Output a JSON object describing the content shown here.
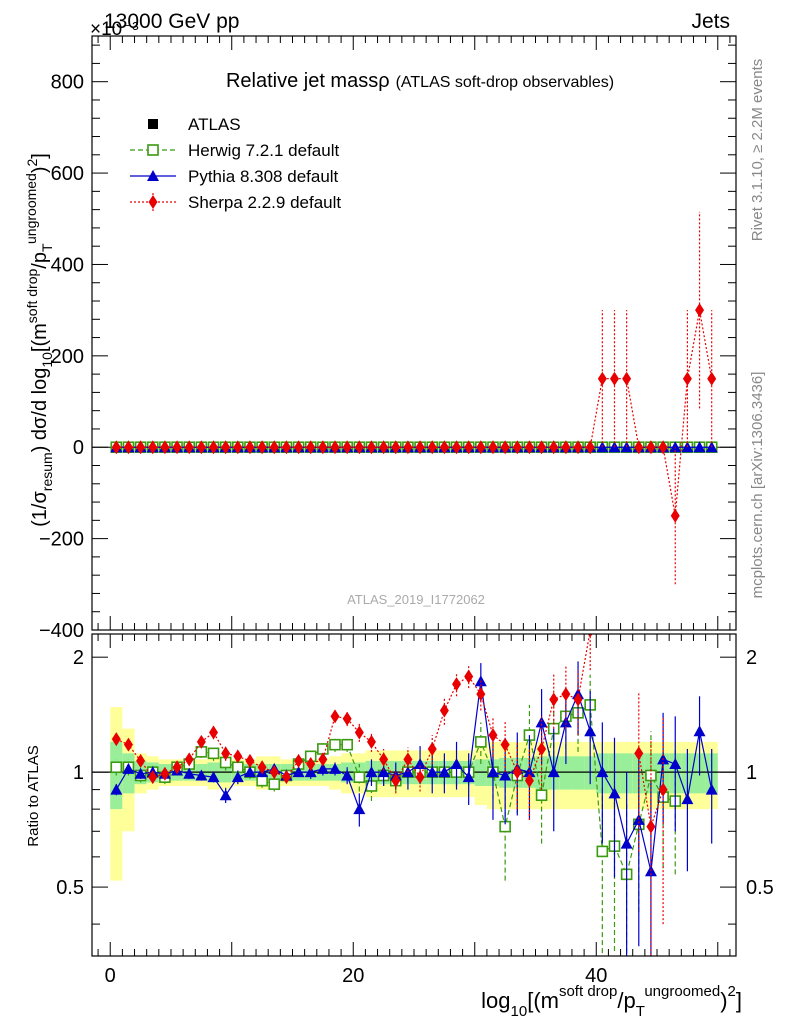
{
  "header": {
    "left": "13000 GeV pp",
    "right": "Jets",
    "exponent": "×10⁻³"
  },
  "side_labels": {
    "rivet": "Rivet 3.1.10, ≥ 2.2M events",
    "mcplots": "mcplots.cern.ch [arXiv:1306.3436]"
  },
  "watermark": "ATLAS_2019_I1772062",
  "chart_data": {
    "type": "line",
    "title": "Relative jet massρ",
    "subtitle": "(ATLAS soft-drop observables)",
    "xlabel": "log10[(m^{soft drop}/p_T^{ungroomed})^2]",
    "ylabel": "(1/σ_resum) dσ/d log10[(m^{soft drop}/p_T^{ungroomed})^2]",
    "ratio_ylabel": "Ratio to ATLAS",
    "xlim": [
      -1.5,
      51.5
    ],
    "ylim": [
      -400,
      900
    ],
    "ratio_ylim": [
      0.33,
      2.3
    ],
    "x_ticks": [
      0,
      20,
      40
    ],
    "y_ticks": [
      -400,
      -200,
      0,
      200,
      400,
      600,
      800
    ],
    "ratio_ticks": [
      0.5,
      1,
      2
    ],
    "x": [
      0.5,
      1.5,
      2.5,
      3.5,
      4.5,
      5.5,
      6.5,
      7.5,
      8.5,
      9.5,
      10.5,
      11.5,
      12.5,
      13.5,
      14.5,
      15.5,
      16.5,
      17.5,
      18.5,
      19.5,
      20.5,
      21.5,
      22.5,
      23.5,
      24.5,
      25.5,
      26.5,
      27.5,
      28.5,
      29.5,
      30.5,
      31.5,
      32.5,
      33.5,
      34.5,
      35.5,
      36.5,
      37.5,
      38.5,
      39.5,
      40.5,
      41.5,
      42.5,
      43.5,
      44.5,
      45.5,
      46.5,
      47.5,
      48.5,
      49.5
    ],
    "band_inner": [
      0.2,
      0.12,
      0.07,
      0.06,
      0.05,
      0.05,
      0.05,
      0.05,
      0.06,
      0.06,
      0.05,
      0.05,
      0.05,
      0.05,
      0.05,
      0.05,
      0.05,
      0.05,
      0.05,
      0.06,
      0.06,
      0.07,
      0.07,
      0.07,
      0.07,
      0.07,
      0.07,
      0.07,
      0.07,
      0.07,
      0.08,
      0.08,
      0.09,
      0.09,
      0.09,
      0.1,
      0.1,
      0.1,
      0.1,
      0.1,
      0.12,
      0.12,
      0.12,
      0.12,
      0.12,
      0.12,
      0.12,
      0.12,
      0.12,
      0.12
    ],
    "band_outer": [
      0.48,
      0.3,
      0.12,
      0.1,
      0.08,
      0.08,
      0.08,
      0.08,
      0.1,
      0.1,
      0.08,
      0.08,
      0.1,
      0.1,
      0.08,
      0.08,
      0.08,
      0.08,
      0.1,
      0.12,
      0.12,
      0.14,
      0.14,
      0.14,
      0.14,
      0.14,
      0.14,
      0.14,
      0.14,
      0.14,
      0.18,
      0.2,
      0.2,
      0.2,
      0.2,
      0.2,
      0.2,
      0.2,
      0.2,
      0.2,
      0.2,
      0.2,
      0.2,
      0.2,
      0.2,
      0.2,
      0.2,
      0.2,
      0.2,
      0.2
    ],
    "series": [
      {
        "name": "ATLAS",
        "color": "#000000",
        "marker": "square",
        "values": [
          0,
          0,
          0,
          0,
          0,
          0,
          0,
          0,
          0,
          0,
          0,
          0,
          0,
          0,
          0,
          0,
          0,
          0,
          0,
          0,
          0,
          0,
          0,
          0,
          0,
          0,
          0,
          0,
          0,
          0,
          0,
          0,
          0,
          0,
          0,
          0,
          0,
          0,
          0,
          0,
          0,
          0,
          0,
          0,
          0,
          0,
          0,
          0,
          0,
          0
        ]
      },
      {
        "name": "Herwig 7.2.1 default",
        "color": "#3a9a10",
        "marker": "open-square",
        "line": "dashed",
        "values": [
          0,
          0,
          0,
          0,
          0,
          0,
          0,
          0,
          0,
          0,
          0,
          0,
          0,
          0,
          0,
          0,
          0,
          0,
          0,
          0,
          0,
          0,
          0,
          0,
          0,
          0,
          0,
          0,
          0,
          0,
          0,
          0,
          0,
          0,
          0,
          0,
          0,
          0,
          0,
          0,
          0,
          0,
          0,
          0,
          0,
          0,
          0,
          0,
          0,
          0
        ],
        "ratio": [
          1.03,
          1.03,
          0.98,
          1.0,
          0.97,
          1.03,
          1.05,
          1.13,
          1.12,
          1.06,
          1.03,
          1.0,
          0.95,
          0.93,
          0.98,
          1.05,
          1.1,
          1.15,
          1.18,
          1.18,
          0.97,
          0.92,
          0.98,
          0.95,
          1.0,
          1.0,
          1.0,
          1.0,
          1.0,
          1.0,
          1.2,
          1.0,
          0.72,
          0.98,
          1.25,
          0.87,
          1.3,
          1.4,
          1.43,
          1.5,
          0.62,
          0.64,
          0.54,
          0.73,
          0.98,
          0.86,
          0.84,
          null,
          null,
          null
        ],
        "ratio_err": [
          0.05,
          0.05,
          0.04,
          0.04,
          0.04,
          0.04,
          0.04,
          0.04,
          0.05,
          0.05,
          0.04,
          0.04,
          0.04,
          0.04,
          0.04,
          0.04,
          0.05,
          0.05,
          0.05,
          0.05,
          0.08,
          0.08,
          0.06,
          0.06,
          0.06,
          0.06,
          0.07,
          0.08,
          0.08,
          0.08,
          0.15,
          0.15,
          0.2,
          0.2,
          0.25,
          0.22,
          0.25,
          0.25,
          0.3,
          0.3,
          0.3,
          0.3,
          0.3,
          0.3,
          0.3,
          0.3,
          0.3,
          null,
          null,
          null
        ]
      },
      {
        "name": "Pythia 8.308 default",
        "color": "#0000cc",
        "marker": "triangle",
        "line": "solid",
        "values": [
          0,
          0,
          0,
          0,
          0,
          0,
          0,
          0,
          0,
          0,
          0,
          0,
          0,
          0,
          0,
          0,
          0,
          0,
          0,
          0,
          0,
          0,
          0,
          0,
          0,
          0,
          0,
          0,
          0,
          0,
          0,
          0,
          0,
          0,
          0,
          0,
          0,
          0,
          0,
          0,
          0,
          0,
          0,
          0,
          0,
          0,
          0,
          0,
          0,
          0
        ],
        "ratio": [
          0.9,
          1.02,
          0.99,
          1.0,
          0.99,
          1.01,
          0.99,
          0.98,
          0.97,
          0.87,
          0.97,
          1.0,
          1.0,
          1.02,
          0.98,
          1.0,
          1.0,
          1.02,
          1.02,
          0.98,
          0.8,
          1.0,
          1.0,
          0.98,
          1.0,
          1.05,
          1.0,
          1.0,
          1.05,
          0.97,
          1.73,
          1.0,
          0.98,
          1.02,
          1.0,
          1.35,
          1.0,
          1.35,
          1.6,
          1.28,
          1.0,
          0.88,
          0.65,
          0.75,
          0.55,
          1.08,
          1.05,
          0.85,
          1.28,
          0.9
        ],
        "ratio_err": [
          0.03,
          0.03,
          0.03,
          0.03,
          0.03,
          0.03,
          0.03,
          0.03,
          0.03,
          0.04,
          0.04,
          0.03,
          0.03,
          0.03,
          0.03,
          0.03,
          0.04,
          0.04,
          0.04,
          0.05,
          0.08,
          0.08,
          0.08,
          0.08,
          0.1,
          0.12,
          0.12,
          0.12,
          0.15,
          0.15,
          0.2,
          0.25,
          0.25,
          0.25,
          0.25,
          0.3,
          0.3,
          0.3,
          0.35,
          0.35,
          0.35,
          0.35,
          0.35,
          0.4,
          0.4,
          0.35,
          0.35,
          0.3,
          0.3,
          0.25
        ]
      },
      {
        "name": "Sherpa 2.2.9 default",
        "color": "#e80000",
        "marker": "diamond",
        "line": "dotted",
        "values": [
          0,
          0,
          0,
          0,
          0,
          0,
          0,
          0,
          0,
          0,
          0,
          0,
          0,
          0,
          0,
          0,
          0,
          0,
          0,
          0,
          0,
          0,
          0,
          0,
          0,
          0,
          0,
          0,
          0,
          0,
          0,
          0,
          0,
          0,
          0,
          0,
          0,
          0,
          0,
          0,
          150,
          150,
          150,
          0,
          0,
          0,
          -150,
          150,
          300,
          150
        ],
        "values_err": [
          0,
          0,
          0,
          0,
          0,
          0,
          0,
          0,
          0,
          0,
          0,
          0,
          0,
          0,
          0,
          0,
          0,
          0,
          0,
          0,
          0,
          0,
          0,
          0,
          0,
          0,
          0,
          0,
          0,
          0,
          0,
          0,
          0,
          0,
          0,
          0,
          0,
          0,
          0,
          0,
          150,
          150,
          150,
          0,
          0,
          0,
          150,
          150,
          215,
          150
        ],
        "ratio": [
          1.22,
          1.18,
          1.07,
          0.97,
          0.99,
          1.03,
          1.08,
          1.2,
          1.27,
          1.12,
          1.1,
          1.07,
          1.03,
          1.0,
          0.97,
          1.07,
          1.05,
          1.08,
          1.4,
          1.38,
          1.27,
          1.2,
          1.08,
          0.95,
          1.08,
          0.97,
          1.15,
          1.45,
          1.7,
          1.78,
          1.6,
          1.25,
          1.18,
          1.0,
          0.95,
          1.15,
          1.55,
          1.6,
          1.55,
          2.35,
          null,
          null,
          null,
          1.12,
          0.72,
          0.9,
          null,
          null,
          null,
          null
        ],
        "ratio_err": [
          0.04,
          0.04,
          0.04,
          0.03,
          0.03,
          0.03,
          0.04,
          0.04,
          0.05,
          0.05,
          0.04,
          0.04,
          0.04,
          0.04,
          0.03,
          0.04,
          0.04,
          0.04,
          0.05,
          0.06,
          0.07,
          0.07,
          0.07,
          0.07,
          0.08,
          0.08,
          0.1,
          0.12,
          0.12,
          0.12,
          0.15,
          0.15,
          0.18,
          0.2,
          0.2,
          0.25,
          0.25,
          0.3,
          0.3,
          0.5,
          null,
          null,
          null,
          0.5,
          0.5,
          0.5,
          null,
          null,
          null,
          null
        ]
      }
    ]
  }
}
